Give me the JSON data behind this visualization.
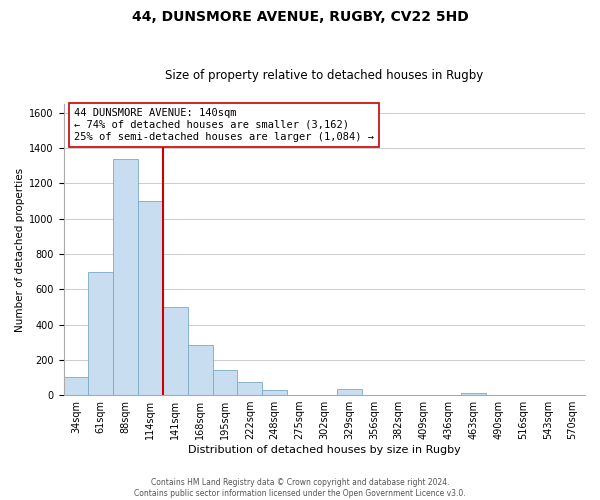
{
  "title": "44, DUNSMORE AVENUE, RUGBY, CV22 5HD",
  "subtitle": "Size of property relative to detached houses in Rugby",
  "xlabel": "Distribution of detached houses by size in Rugby",
  "ylabel": "Number of detached properties",
  "bar_labels": [
    "34sqm",
    "61sqm",
    "88sqm",
    "114sqm",
    "141sqm",
    "168sqm",
    "195sqm",
    "222sqm",
    "248sqm",
    "275sqm",
    "302sqm",
    "329sqm",
    "356sqm",
    "382sqm",
    "409sqm",
    "436sqm",
    "463sqm",
    "490sqm",
    "516sqm",
    "543sqm",
    "570sqm"
  ],
  "bar_values": [
    100,
    700,
    1340,
    1100,
    500,
    285,
    140,
    75,
    28,
    0,
    0,
    37,
    0,
    0,
    0,
    0,
    12,
    0,
    0,
    0,
    0
  ],
  "bar_color": "#c8ddf0",
  "bar_edge_color": "#7aaac8",
  "highlight_line_color": "#cc0000",
  "annotation_line1": "44 DUNSMORE AVENUE: 140sqm",
  "annotation_line2": "← 74% of detached houses are smaller (3,162)",
  "annotation_line3": "25% of semi-detached houses are larger (1,084) →",
  "annotation_box_color": "#ffffff",
  "annotation_box_edge": "#cc0000",
  "ylim": [
    0,
    1650
  ],
  "yticks": [
    0,
    200,
    400,
    600,
    800,
    1000,
    1200,
    1400,
    1600
  ],
  "footer_line1": "Contains HM Land Registry data © Crown copyright and database right 2024.",
  "footer_line2": "Contains public sector information licensed under the Open Government Licence v3.0.",
  "bg_color": "#ffffff",
  "grid_color": "#cccccc",
  "title_fontsize": 10,
  "subtitle_fontsize": 8.5,
  "xlabel_fontsize": 8,
  "ylabel_fontsize": 7.5,
  "tick_fontsize": 7,
  "annotation_fontsize": 7.5,
  "footer_fontsize": 5.5
}
